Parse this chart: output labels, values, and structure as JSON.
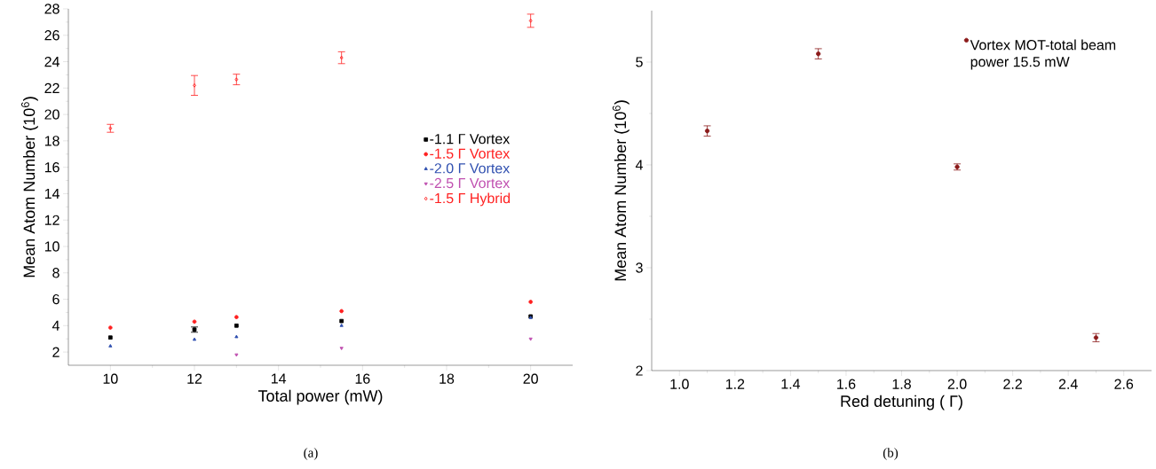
{
  "chart_data": [
    {
      "type": "scatter",
      "xlabel": "Total power (mW)",
      "ylabel": "Mean Atom Number (10$^{6}$)",
      "x": [
        10,
        12,
        13,
        15.5,
        20
      ],
      "xlim": [
        9,
        21
      ],
      "ylim": [
        1,
        28
      ],
      "xticks": [
        10,
        12,
        14,
        16,
        18,
        20
      ],
      "yticks": [
        2,
        4,
        6,
        8,
        10,
        12,
        14,
        16,
        18,
        20,
        22,
        24,
        26,
        28
      ],
      "legend": "right",
      "grid": false,
      "annotations": [
        "(a)"
      ],
      "series": [
        {
          "name": "-1.1 Γ Vortex",
          "color": "#000000",
          "marker": "square",
          "values": [
            3.1,
            3.7,
            4.0,
            4.35,
            4.7
          ],
          "errors": [
            null,
            0.2,
            null,
            null,
            null
          ]
        },
        {
          "name": "-1.5 Γ Vortex",
          "color": "#ff2020",
          "marker": "circle",
          "values": [
            3.85,
            4.3,
            4.65,
            5.1,
            5.8
          ]
        },
        {
          "name": "-2.0 Γ Vortex",
          "color": "#3050b0",
          "marker": "triangle",
          "values": [
            2.45,
            2.95,
            3.15,
            4.0,
            4.6
          ]
        },
        {
          "name": "-2.5 Γ Vortex",
          "color": "#c050b0",
          "marker": "triangle-down",
          "values": [
            null,
            null,
            1.8,
            2.3,
            3.0
          ]
        },
        {
          "name": "-1.5 Γ Hybrid",
          "color": "#ff2020",
          "marker": "diamond-open",
          "values": [
            18.95,
            22.2,
            22.65,
            24.3,
            27.1
          ],
          "errors": [
            0.3,
            0.75,
            0.4,
            0.45,
            0.5
          ]
        }
      ]
    },
    {
      "type": "scatter",
      "xlabel": "Red detuning ( Γ)",
      "ylabel": "Mean Atom Number (10$^{6}$)",
      "x": [
        1.1,
        1.5,
        2.0,
        2.5
      ],
      "xlim": [
        0.9,
        2.7
      ],
      "ylim": [
        2,
        5.5
      ],
      "xticks": [
        {
          "value": 1.0,
          "label": "1.0"
        },
        1.2,
        1.4,
        1.6,
        1.8,
        {
          "value": 2.0,
          "label": "2.0"
        },
        2.2,
        2.4,
        2.6
      ],
      "yticks": [
        2,
        3,
        4,
        5
      ],
      "legend": "top right",
      "grid": false,
      "annotations": [
        "(b)"
      ],
      "series": [
        {
          "name": "Vortex MOT-total beam power 15.5 mW",
          "color": "#8b1a1a",
          "marker": "circle",
          "values": [
            4.33,
            5.08,
            3.98,
            2.32
          ],
          "errors": [
            0.05,
            0.05,
            0.03,
            0.04
          ]
        }
      ]
    }
  ]
}
